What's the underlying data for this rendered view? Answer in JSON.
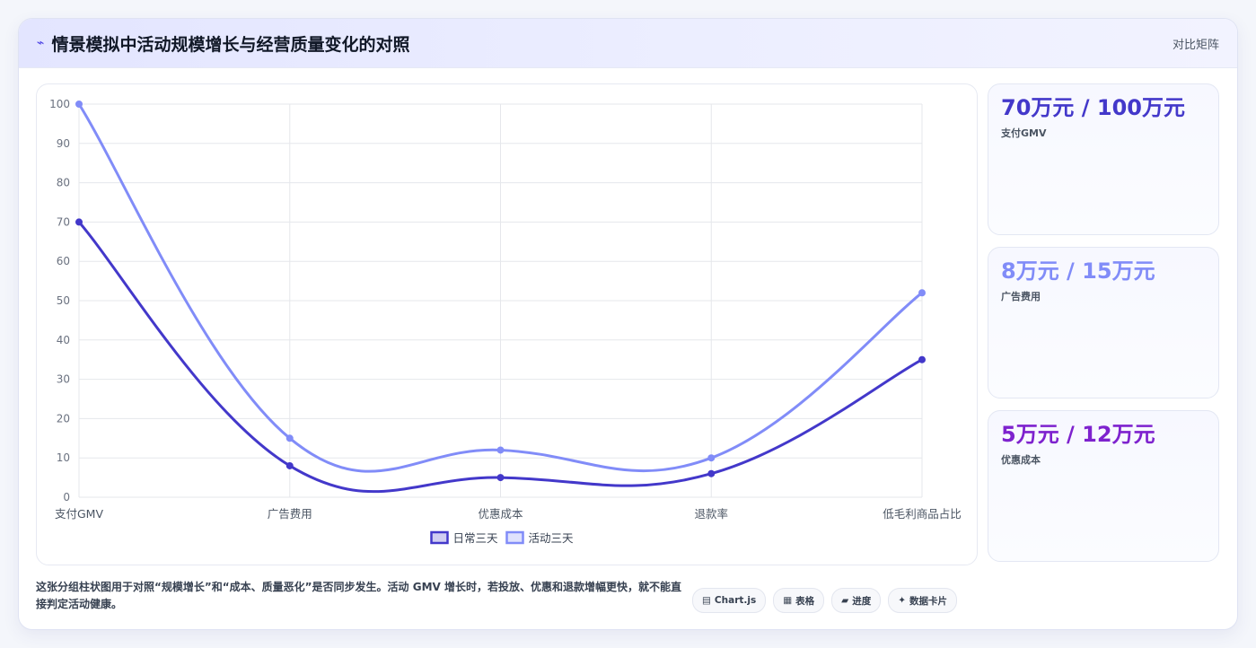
{
  "header": {
    "icon": "trend-icon",
    "icon_glyph": "⌁",
    "title": "情景模拟中活动规模增长与经营质量变化的对照",
    "right_label": "对比矩阵"
  },
  "chart_data": {
    "type": "line",
    "categories": [
      "支付GMV",
      "广告费用",
      "优惠成本",
      "退款率",
      "低毛利商品占比"
    ],
    "series": [
      {
        "name": "日常三天",
        "values": [
          70,
          8,
          5,
          6,
          35
        ],
        "color": "#4338ca"
      },
      {
        "name": "活动三天",
        "values": [
          100,
          15,
          12,
          10,
          52
        ],
        "color": "#818cf8"
      }
    ],
    "ylim": [
      0,
      100
    ],
    "yticks": [
      0,
      10,
      20,
      30,
      40,
      50,
      60,
      70,
      80,
      90,
      100
    ],
    "grid": true,
    "legend": "bottom"
  },
  "stats": [
    {
      "value": "70万元 / 100万元",
      "label": "支付GMV",
      "color": "#4338ca"
    },
    {
      "value": "8万元 / 15万元",
      "label": "广告费用",
      "color": "#818cf8"
    },
    {
      "value": "5万元 / 12万元",
      "label": "优惠成本",
      "color": "#7e22ce"
    }
  ],
  "note": "这张分组柱状图用于对照“规模增长”和“成本、质量恶化”是否同步发生。活动 GMV 增长时，若投放、优惠和退款增幅更快，就不能直接判定活动健康。",
  "chips": [
    {
      "icon": "chart-icon",
      "glyph": "▤",
      "label": "Chart.js"
    },
    {
      "icon": "table-icon",
      "glyph": "▦",
      "label": "表格"
    },
    {
      "icon": "progress-icon",
      "glyph": "▰",
      "label": "进度"
    },
    {
      "icon": "data-card-icon",
      "glyph": "✦",
      "label": "数据卡片"
    }
  ]
}
